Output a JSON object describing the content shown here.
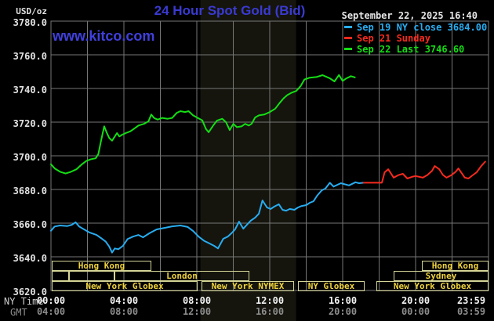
{
  "header": {
    "unit_label": "USD/oz",
    "title": "24 Hour Spot Gold (Bid)",
    "datetime": "September 22, 2025 16:40",
    "watermark": "www.kitco.com",
    "legend": [
      {
        "label": "Sep 19 NY close 3684.00",
        "color": "#28acf0"
      },
      {
        "label": "Sep 21 Sunday",
        "color": "#f62a1e"
      },
      {
        "label": "Sep 22 Last 3746.60",
        "color": "#15de15"
      }
    ]
  },
  "axes": {
    "ny_time_label": "NY Time",
    "gmt_label": "GMT",
    "y_ticks": [
      "3780.0",
      "3760.0",
      "3740.0",
      "3720.0",
      "3700.0",
      "3680.0",
      "3660.0",
      "3640.0",
      "3620.0"
    ],
    "x_ticks": [
      {
        "t": 0,
        "ny": "00:00",
        "gmt": "04:00"
      },
      {
        "t": 4,
        "ny": "04:00",
        "gmt": "08:00"
      },
      {
        "t": 8,
        "ny": "08:00",
        "gmt": "12:00"
      },
      {
        "t": 12,
        "ny": "12:00",
        "gmt": "16:00"
      },
      {
        "t": 16,
        "ny": "16:00",
        "gmt": "20:00"
      },
      {
        "t": 20,
        "ny": "20:00",
        "gmt": "00:00"
      },
      {
        "t": 23.983,
        "ny": "23:59",
        "gmt": "03:59"
      }
    ]
  },
  "sessions": {
    "border_color": "#d4d496",
    "text_color": "#eed23e",
    "rows": [
      [
        {
          "label": "Hong Kong",
          "t0": 0.05,
          "t1": 5.5
        },
        {
          "label": "Hong Kong",
          "t0": 20.35,
          "t1": 24
        }
      ],
      [
        {
          "label": "",
          "t0": 0.05,
          "t1": 1.0
        },
        {
          "label": "",
          "t0": 1.0,
          "t1": 3.5
        },
        {
          "label": "London",
          "t0": 3.5,
          "t1": 10.9
        },
        {
          "label": "Sydney",
          "t0": 18.8,
          "t1": 24
        }
      ],
      [
        {
          "label": "New York Globex",
          "t0": 0.05,
          "t1": 8.05
        },
        {
          "label": "New York NYMEX",
          "t0": 8.27,
          "t1": 13.35
        },
        {
          "label": "NY Globex",
          "t0": 13.55,
          "t1": 17.2
        },
        {
          "label": "New York Globex",
          "t0": 17.85,
          "t1": 24
        }
      ]
    ]
  },
  "chart_data": {
    "type": "line",
    "title": "24 Hour Spot Gold (Bid)",
    "xlabel": "NY Time (hours 00:00-23:59)",
    "ylabel": "USD/oz",
    "ylim": [
      3620,
      3780
    ],
    "xlim_hours": [
      0,
      24
    ],
    "grid": {
      "x_step_hours": 2,
      "y_step": 20,
      "color": "#767676",
      "background": "#000000"
    },
    "shaded_band_hours": [
      8.2,
      13.45
    ],
    "band_color": "#15150e",
    "series": [
      {
        "name": "Sep 22 Last 3746.60",
        "color": "#15de15",
        "points": [
          [
            0,
            3695
          ],
          [
            0.2,
            3692.5
          ],
          [
            0.5,
            3690.5
          ],
          [
            0.8,
            3689.5
          ],
          [
            1.1,
            3690.5
          ],
          [
            1.4,
            3692
          ],
          [
            1.7,
            3695
          ],
          [
            1.95,
            3697
          ],
          [
            2.2,
            3698
          ],
          [
            2.45,
            3698.5
          ],
          [
            2.6,
            3701
          ],
          [
            2.75,
            3709
          ],
          [
            2.92,
            3717.5
          ],
          [
            3.05,
            3714
          ],
          [
            3.2,
            3710.5
          ],
          [
            3.35,
            3709
          ],
          [
            3.5,
            3711.5
          ],
          [
            3.62,
            3713.5
          ],
          [
            3.75,
            3711.5
          ],
          [
            3.9,
            3712.5
          ],
          [
            4.1,
            3713.5
          ],
          [
            4.35,
            3714.5
          ],
          [
            4.55,
            3716
          ],
          [
            4.8,
            3718
          ],
          [
            5.1,
            3719
          ],
          [
            5.35,
            3720.5
          ],
          [
            5.5,
            3724.5
          ],
          [
            5.65,
            3722.5
          ],
          [
            5.85,
            3721.5
          ],
          [
            6.1,
            3722.5
          ],
          [
            6.4,
            3722
          ],
          [
            6.65,
            3722.5
          ],
          [
            6.9,
            3725.5
          ],
          [
            7.1,
            3726.5
          ],
          [
            7.35,
            3726
          ],
          [
            7.55,
            3726.5
          ],
          [
            7.8,
            3724
          ],
          [
            8.05,
            3722.5
          ],
          [
            8.3,
            3721
          ],
          [
            8.5,
            3716
          ],
          [
            8.65,
            3714
          ],
          [
            8.9,
            3718
          ],
          [
            9.1,
            3720.9
          ],
          [
            9.4,
            3722
          ],
          [
            9.6,
            3720
          ],
          [
            9.8,
            3715.3
          ],
          [
            10.0,
            3719
          ],
          [
            10.2,
            3717
          ],
          [
            10.45,
            3717.5
          ],
          [
            10.65,
            3719
          ],
          [
            10.85,
            3718
          ],
          [
            11.0,
            3719
          ],
          [
            11.2,
            3722.8
          ],
          [
            11.4,
            3724
          ],
          [
            11.7,
            3724.5
          ],
          [
            12.0,
            3726
          ],
          [
            12.3,
            3728
          ],
          [
            12.55,
            3731.5
          ],
          [
            12.75,
            3734
          ],
          [
            12.95,
            3736
          ],
          [
            13.2,
            3737.5
          ],
          [
            13.45,
            3738.5
          ],
          [
            13.7,
            3741.5
          ],
          [
            13.9,
            3745.3
          ],
          [
            14.2,
            3746.4
          ],
          [
            14.55,
            3746.8
          ],
          [
            14.9,
            3747.9
          ],
          [
            15.3,
            3746
          ],
          [
            15.55,
            3744.2
          ],
          [
            15.8,
            3748
          ],
          [
            16.0,
            3744.5
          ],
          [
            16.2,
            3746
          ],
          [
            16.45,
            3747.3
          ],
          [
            16.67,
            3746.6
          ]
        ]
      },
      {
        "name": "Sep 19 NY close 3684.00",
        "color": "#28acf0",
        "points": [
          [
            0,
            3655.5
          ],
          [
            0.2,
            3658
          ],
          [
            0.5,
            3658.6
          ],
          [
            0.9,
            3658.3
          ],
          [
            1.15,
            3659
          ],
          [
            1.35,
            3660.5
          ],
          [
            1.55,
            3658
          ],
          [
            1.75,
            3656.7
          ],
          [
            2.1,
            3654.5
          ],
          [
            2.5,
            3653
          ],
          [
            2.8,
            3650.7
          ],
          [
            3.0,
            3649
          ],
          [
            3.2,
            3646
          ],
          [
            3.35,
            3642.5
          ],
          [
            3.5,
            3645
          ],
          [
            3.7,
            3644.5
          ],
          [
            3.95,
            3646.5
          ],
          [
            4.2,
            3650.5
          ],
          [
            4.5,
            3652
          ],
          [
            4.8,
            3653
          ],
          [
            5.05,
            3651.6
          ],
          [
            5.4,
            3654
          ],
          [
            5.8,
            3656.3
          ],
          [
            6.25,
            3657.2
          ],
          [
            6.65,
            3658.1
          ],
          [
            7.1,
            3658.6
          ],
          [
            7.5,
            3657.7
          ],
          [
            7.8,
            3655.3
          ],
          [
            8.1,
            3652
          ],
          [
            8.4,
            3649.5
          ],
          [
            8.6,
            3648.4
          ],
          [
            8.95,
            3646.5
          ],
          [
            9.16,
            3645
          ],
          [
            9.45,
            3650.7
          ],
          [
            9.7,
            3652
          ],
          [
            9.9,
            3654
          ],
          [
            10.1,
            3656.3
          ],
          [
            10.32,
            3660.9
          ],
          [
            10.55,
            3656.7
          ],
          [
            10.75,
            3659
          ],
          [
            10.95,
            3661.4
          ],
          [
            11.2,
            3663.3
          ],
          [
            11.4,
            3665.6
          ],
          [
            11.6,
            3673.5
          ],
          [
            11.85,
            3669.3
          ],
          [
            12.05,
            3668.4
          ],
          [
            12.25,
            3669.8
          ],
          [
            12.5,
            3671.2
          ],
          [
            12.7,
            3667.9
          ],
          [
            12.9,
            3667.4
          ],
          [
            13.1,
            3668.4
          ],
          [
            13.35,
            3667.9
          ],
          [
            13.55,
            3669.3
          ],
          [
            13.75,
            3670.2
          ],
          [
            14.0,
            3670.7
          ],
          [
            14.2,
            3672.1
          ],
          [
            14.4,
            3673
          ],
          [
            14.6,
            3676.3
          ],
          [
            14.85,
            3679.5
          ],
          [
            15.05,
            3680.5
          ],
          [
            15.3,
            3684
          ],
          [
            15.5,
            3681.7
          ],
          [
            15.9,
            3683.7
          ],
          [
            16.35,
            3682.4
          ],
          [
            16.7,
            3684.3
          ],
          [
            16.9,
            3683.7
          ],
          [
            17.15,
            3684
          ]
        ]
      },
      {
        "name": "Sep 21 Sunday",
        "color": "#f62a1e",
        "points": [
          [
            17.15,
            3684
          ],
          [
            18.15,
            3684
          ],
          [
            18.3,
            3690.2
          ],
          [
            18.5,
            3692
          ],
          [
            18.8,
            3687
          ],
          [
            19.05,
            3688.5
          ],
          [
            19.3,
            3689.3
          ],
          [
            19.55,
            3686.5
          ],
          [
            19.8,
            3687.5
          ],
          [
            20.0,
            3688
          ],
          [
            20.4,
            3687
          ],
          [
            20.65,
            3688.6
          ],
          [
            20.9,
            3691
          ],
          [
            21.05,
            3693.9
          ],
          [
            21.3,
            3692
          ],
          [
            21.5,
            3688.6
          ],
          [
            21.7,
            3687
          ],
          [
            21.95,
            3688.4
          ],
          [
            22.2,
            3690.5
          ],
          [
            22.35,
            3692.5
          ],
          [
            22.7,
            3687
          ],
          [
            22.9,
            3686.5
          ],
          [
            23.15,
            3688.6
          ],
          [
            23.35,
            3690.2
          ],
          [
            23.6,
            3693.9
          ],
          [
            23.82,
            3696.5
          ]
        ]
      }
    ]
  }
}
